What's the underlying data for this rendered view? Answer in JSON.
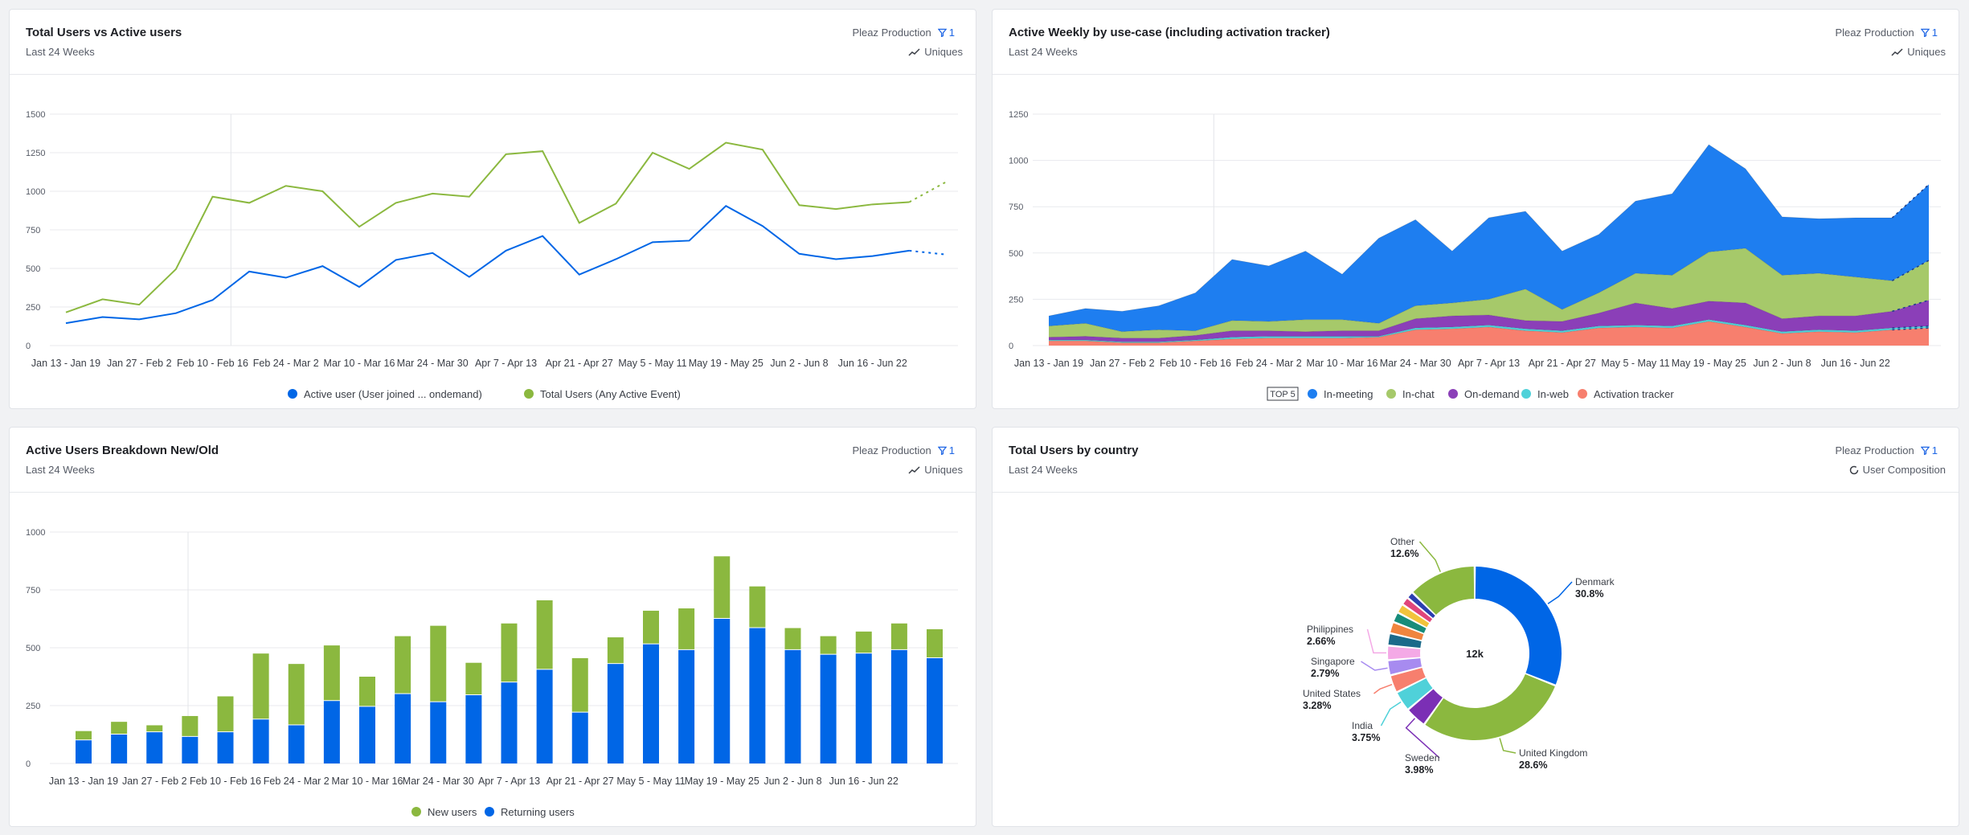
{
  "common": {
    "project": "Pleaz Production",
    "filter_count": "1",
    "range": "Last 24 Weeks",
    "mode_uniques": "Uniques",
    "mode_composition": "User Composition"
  },
  "colors": {
    "blue": "#0066e6",
    "green": "#8bb83f",
    "purple": "#7b2fb5",
    "cyan": "#4fd1d9",
    "salmon": "#f77f6e"
  },
  "card1": {
    "title": "Total Users vs Active users",
    "chart_data": {
      "type": "line",
      "title": "Total Users vs Active users",
      "ylim": [
        0,
        1500
      ],
      "yticks": [
        0,
        250,
        500,
        750,
        1000,
        1250,
        1500
      ],
      "xtick_labels": [
        "Jan 13 - Jan 19",
        "Jan 27 - Feb 2",
        "Feb 10 - Feb 16",
        "Feb 24 - Mar 2",
        "Mar 10 - Mar 16",
        "Mar 24 - Mar 30",
        "Apr 7 - Apr 13",
        "Apr 21 - Apr 27",
        "May 5 - May 11",
        "May 19 - May 25",
        "Jun 2 - Jun 8",
        "Jun 16 - Jun 22"
      ],
      "series": [
        {
          "name": "Active user (User joined ... ondemand)",
          "color": "#0066e6",
          "values": [
            145,
            185,
            170,
            210,
            295,
            480,
            440,
            515,
            380,
            555,
            600,
            445,
            615,
            710,
            460,
            560,
            670,
            680,
            905,
            775,
            595,
            560,
            580,
            615,
            590
          ]
        },
        {
          "name": "Total Users (Any Active Event)",
          "color": "#8bb83f",
          "values": [
            215,
            300,
            265,
            495,
            965,
            925,
            1035,
            1000,
            770,
            925,
            985,
            965,
            1240,
            1260,
            795,
            920,
            1250,
            1145,
            1315,
            1270,
            910,
            885,
            915,
            930,
            1060
          ]
        }
      ]
    }
  },
  "card2": {
    "title": "Active Weekly by use-case (including activation tracker)",
    "top_badge": "TOP 5",
    "chart_data": {
      "type": "area",
      "title": "Active Weekly by use-case (including activation tracker)",
      "ylim": [
        0,
        1250
      ],
      "yticks": [
        0,
        250,
        500,
        750,
        1000,
        1250
      ],
      "xtick_labels": [
        "Jan 13 - Jan 19",
        "Jan 27 - Feb 2",
        "Feb 10 - Feb 16",
        "Feb 24 - Mar 2",
        "Mar 10 - Mar 16",
        "Mar 24 - Mar 30",
        "Apr 7 - Apr 13",
        "Apr 21 - Apr 27",
        "May 5 - May 11",
        "May 19 - May 25",
        "Jun 2 - Jun 8",
        "Jun 16 - Jun 22"
      ],
      "series": [
        {
          "name": "In-meeting",
          "color": "#1e7ef0",
          "values": [
            55,
            80,
            110,
            130,
            205,
            330,
            300,
            370,
            245,
            460,
            465,
            280,
            440,
            420,
            315,
            315,
            390,
            440,
            580,
            430,
            315,
            295,
            320,
            340,
            410
          ]
        },
        {
          "name": "In-chat",
          "color": "#a6c96a",
          "values": [
            60,
            70,
            35,
            45,
            25,
            55,
            50,
            65,
            60,
            40,
            70,
            70,
            85,
            170,
            65,
            110,
            160,
            180,
            265,
            295,
            235,
            230,
            210,
            165,
            215
          ]
        },
        {
          "name": "On-demand",
          "color": "#8b3fb8",
          "values": [
            15,
            20,
            20,
            20,
            25,
            35,
            30,
            25,
            30,
            30,
            50,
            60,
            55,
            45,
            50,
            70,
            120,
            95,
            100,
            120,
            70,
            75,
            80,
            90,
            140
          ]
        },
        {
          "name": "In-web",
          "color": "#4fd1d9",
          "values": [
            5,
            5,
            5,
            5,
            5,
            10,
            10,
            10,
            10,
            5,
            10,
            10,
            10,
            10,
            10,
            10,
            10,
            10,
            10,
            10,
            10,
            10,
            10,
            10,
            10
          ]
        },
        {
          "name": "Activation tracker",
          "color": "#f77f6e",
          "values": [
            25,
            25,
            15,
            15,
            25,
            35,
            40,
            40,
            40,
            45,
            85,
            90,
            100,
            80,
            70,
            95,
            100,
            95,
            130,
            100,
            65,
            75,
            70,
            85,
            95
          ]
        }
      ]
    }
  },
  "card3": {
    "title": "Active Users Breakdown New/Old",
    "chart_data": {
      "type": "bar",
      "stacked": true,
      "title": "Active Users Breakdown New/Old",
      "ylim": [
        0,
        1000
      ],
      "yticks": [
        0,
        250,
        500,
        750,
        1000
      ],
      "xtick_labels": [
        "Jan 13 - Jan 19",
        "Jan 27 - Feb 2",
        "Feb 10 - Feb 16",
        "Feb 24 - Mar 2",
        "Mar 10 - Mar 16",
        "Mar 24 - Mar 30",
        "Apr 7 - Apr 13",
        "Apr 21 - Apr 27",
        "May 5 - May 11",
        "May 19 - May 25",
        "Jun 2 - Jun 8",
        "Jun 16 - Jun 22"
      ],
      "series": [
        {
          "name": "New users",
          "color": "#8bb83f",
          "values": [
            40,
            55,
            30,
            90,
            155,
            285,
            265,
            240,
            130,
            250,
            330,
            140,
            255,
            300,
            235,
            115,
            145,
            180,
            270,
            180,
            95,
            80,
            95,
            115,
            125
          ]
        },
        {
          "name": "Returning users",
          "color": "#0066e6",
          "values": [
            100,
            125,
            135,
            115,
            135,
            190,
            165,
            270,
            245,
            300,
            265,
            295,
            350,
            405,
            220,
            430,
            515,
            490,
            625,
            585,
            490,
            470,
            475,
            490,
            455
          ]
        }
      ]
    }
  },
  "card4": {
    "title": "Total Users by country",
    "chart_data": {
      "type": "pie",
      "donut": true,
      "title": "Total Users by country",
      "center_label": "12k",
      "slices": [
        {
          "name": "Denmark",
          "value": 30.8,
          "label": "30.8%",
          "color": "#0066e6",
          "shown": true
        },
        {
          "name": "United Kingdom",
          "value": 28.6,
          "label": "28.6%",
          "color": "#8bb83f",
          "shown": true
        },
        {
          "name": "Sweden",
          "value": 3.98,
          "label": "3.98%",
          "color": "#7b2fb5",
          "shown": true
        },
        {
          "name": "India",
          "value": 3.75,
          "label": "3.75%",
          "color": "#4fd1d9",
          "shown": true
        },
        {
          "name": "United States",
          "value": 3.28,
          "label": "3.28%",
          "color": "#f77f6e",
          "shown": true
        },
        {
          "name": "Singapore",
          "value": 2.79,
          "label": "2.79%",
          "color": "#a78bf0",
          "shown": true
        },
        {
          "name": "Philippines",
          "value": 2.66,
          "label": "2.66%",
          "color": "#f4a9e6",
          "shown": true
        },
        {
          "name": "",
          "value": 2.3,
          "label": "",
          "color": "#1b6a8a",
          "shown": false
        },
        {
          "name": "",
          "value": 2.1,
          "label": "",
          "color": "#f0853f",
          "shown": false
        },
        {
          "name": "",
          "value": 1.9,
          "label": "",
          "color": "#178c7a",
          "shown": false
        },
        {
          "name": "",
          "value": 1.7,
          "label": "",
          "color": "#f2c33c",
          "shown": false
        },
        {
          "name": "",
          "value": 1.5,
          "label": "",
          "color": "#e0457b",
          "shown": false
        },
        {
          "name": "",
          "value": 1.3,
          "label": "",
          "color": "#2a3fb0",
          "shown": false
        },
        {
          "name": "Other",
          "value": 12.6,
          "label": "12.6%",
          "color": "#8bb83f",
          "shown": true
        }
      ]
    }
  }
}
